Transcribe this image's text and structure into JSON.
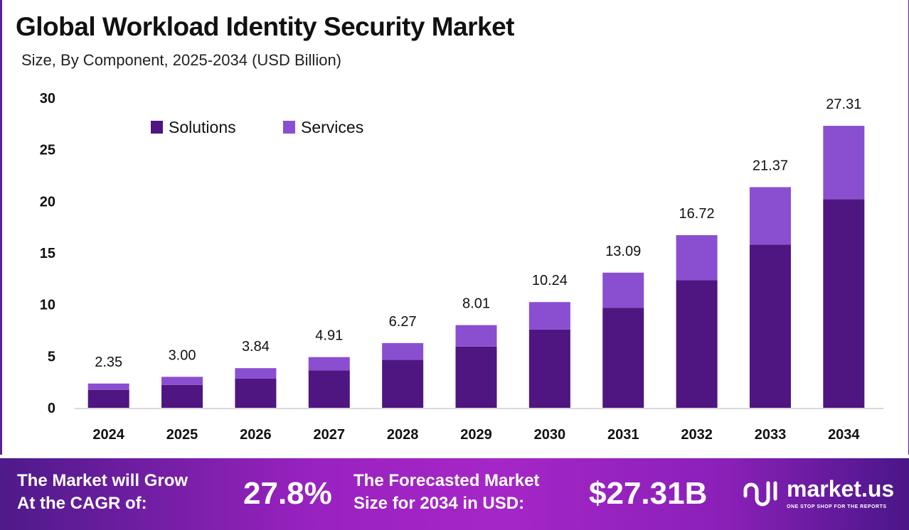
{
  "chart_data": {
    "type": "bar",
    "stacked": true,
    "title": "Global Workload Identity Security Market",
    "subtitle": "Size, By Component, 2025-2034 (USD Billion)",
    "categories": [
      "2024",
      "2025",
      "2026",
      "2027",
      "2028",
      "2029",
      "2030",
      "2031",
      "2032",
      "2033",
      "2034"
    ],
    "series": [
      {
        "name": "Solutions",
        "color": "#4f1580",
        "values": [
          1.74,
          2.22,
          2.84,
          3.63,
          4.64,
          5.93,
          7.58,
          9.69,
          12.37,
          15.81,
          20.21
        ]
      },
      {
        "name": "Services",
        "color": "#8a4fd0",
        "values": [
          0.61,
          0.78,
          1.0,
          1.28,
          1.63,
          2.08,
          2.66,
          3.4,
          4.35,
          5.56,
          7.1
        ]
      }
    ],
    "totals": [
      "2.35",
      "3.00",
      "3.84",
      "4.91",
      "6.27",
      "8.01",
      "10.24",
      "13.09",
      "16.72",
      "21.37",
      "27.31"
    ],
    "yticks": [
      "0",
      "5",
      "10",
      "15",
      "20",
      "25",
      "30"
    ],
    "ylim": [
      0,
      30
    ],
    "grid": false,
    "legend_position": "top-left"
  },
  "footer": {
    "cagr_label_1": "The Market will Grow",
    "cagr_label_2": "At the CAGR of:",
    "cagr_value": "27.8%",
    "forecast_label_1": "The Forecasted Market",
    "forecast_label_2": "Size for 2034 in USD:",
    "forecast_value": "$27.31B",
    "logo_text": "market.us",
    "logo_tagline": "ONE STOP SHOP FOR THE REPORTS"
  }
}
